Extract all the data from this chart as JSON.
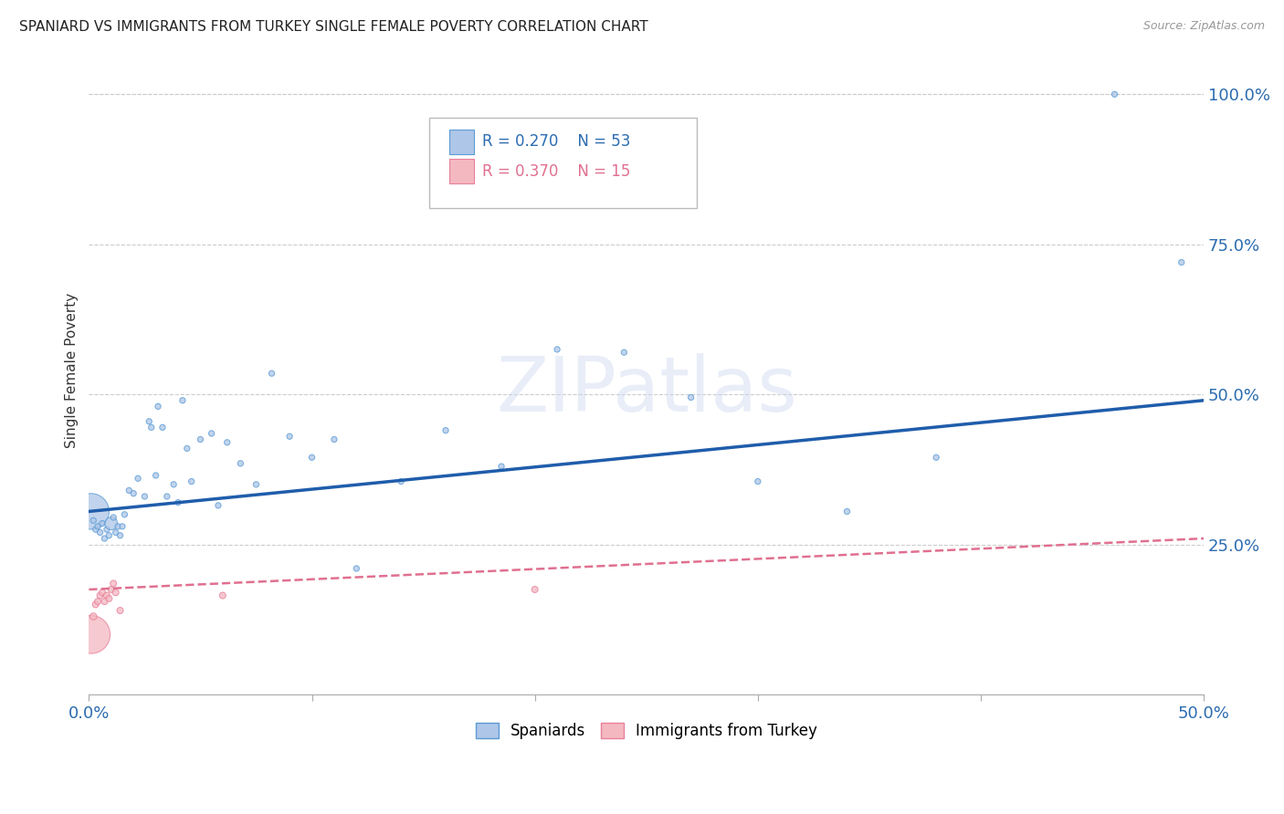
{
  "title": "SPANIARD VS IMMIGRANTS FROM TURKEY SINGLE FEMALE POVERTY CORRELATION CHART",
  "source": "Source: ZipAtlas.com",
  "ylabel_label": "Single Female Poverty",
  "xlim": [
    0.0,
    0.5
  ],
  "ylim": [
    0.0,
    1.08
  ],
  "xticks": [
    0.0,
    0.1,
    0.2,
    0.3,
    0.4,
    0.5
  ],
  "ytick_positions": [
    0.25,
    0.5,
    0.75,
    1.0
  ],
  "ytick_labels": [
    "25.0%",
    "50.0%",
    "75.0%",
    "100.0%"
  ],
  "legend_entry1": {
    "R": "0.270",
    "N": "53",
    "color": "#aec6e8"
  },
  "legend_entry2": {
    "R": "0.370",
    "N": "15",
    "color": "#f4b8c1"
  },
  "watermark": "ZIPatlas",
  "spaniards_color": "#aec6e8",
  "spaniards_edge": "#5b9bd5",
  "turkey_color": "#f4b8c1",
  "turkey_edge": "#e8809a",
  "trend_spaniards_color": "#1f5dab",
  "trend_turkey_color": "#e07090",
  "spaniards_x": [
    0.001,
    0.002,
    0.003,
    0.004,
    0.005,
    0.006,
    0.007,
    0.008,
    0.009,
    0.01,
    0.011,
    0.012,
    0.013,
    0.014,
    0.015,
    0.016,
    0.018,
    0.02,
    0.022,
    0.025,
    0.027,
    0.028,
    0.03,
    0.031,
    0.033,
    0.035,
    0.038,
    0.04,
    0.042,
    0.044,
    0.046,
    0.05,
    0.055,
    0.058,
    0.062,
    0.068,
    0.075,
    0.082,
    0.09,
    0.1,
    0.11,
    0.12,
    0.14,
    0.16,
    0.185,
    0.21,
    0.24,
    0.27,
    0.3,
    0.34,
    0.38,
    0.46,
    0.49
  ],
  "spaniards_y": [
    0.305,
    0.29,
    0.275,
    0.28,
    0.27,
    0.285,
    0.26,
    0.275,
    0.265,
    0.285,
    0.295,
    0.27,
    0.28,
    0.265,
    0.28,
    0.3,
    0.34,
    0.335,
    0.36,
    0.33,
    0.455,
    0.445,
    0.365,
    0.48,
    0.445,
    0.33,
    0.35,
    0.32,
    0.49,
    0.41,
    0.355,
    0.425,
    0.435,
    0.315,
    0.42,
    0.385,
    0.35,
    0.535,
    0.43,
    0.395,
    0.425,
    0.21,
    0.355,
    0.44,
    0.38,
    0.575,
    0.57,
    0.495,
    0.355,
    0.305,
    0.395,
    1.0,
    0.72
  ],
  "spaniards_size": [
    800,
    20,
    20,
    20,
    20,
    20,
    20,
    20,
    20,
    100,
    20,
    20,
    20,
    20,
    20,
    20,
    20,
    20,
    20,
    20,
    20,
    20,
    20,
    20,
    20,
    20,
    20,
    20,
    20,
    20,
    20,
    20,
    20,
    20,
    20,
    20,
    20,
    20,
    20,
    20,
    20,
    20,
    20,
    20,
    20,
    20,
    20,
    20,
    20,
    20,
    20,
    20,
    20
  ],
  "turkey_x": [
    0.001,
    0.002,
    0.003,
    0.004,
    0.005,
    0.006,
    0.007,
    0.008,
    0.009,
    0.01,
    0.011,
    0.012,
    0.014,
    0.06,
    0.2
  ],
  "turkey_y": [
    0.1,
    0.13,
    0.15,
    0.155,
    0.165,
    0.17,
    0.155,
    0.165,
    0.16,
    0.175,
    0.185,
    0.17,
    0.14,
    0.165,
    0.175
  ],
  "turkey_size": [
    900,
    30,
    25,
    25,
    25,
    25,
    25,
    25,
    25,
    25,
    25,
    25,
    25,
    25,
    25
  ],
  "trend_s_x0": 0.0,
  "trend_s_y0": 0.305,
  "trend_s_x1": 0.5,
  "trend_s_y1": 0.49,
  "trend_t_x0": 0.0,
  "trend_t_y0": 0.175,
  "trend_t_x1": 0.5,
  "trend_t_y1": 0.26
}
